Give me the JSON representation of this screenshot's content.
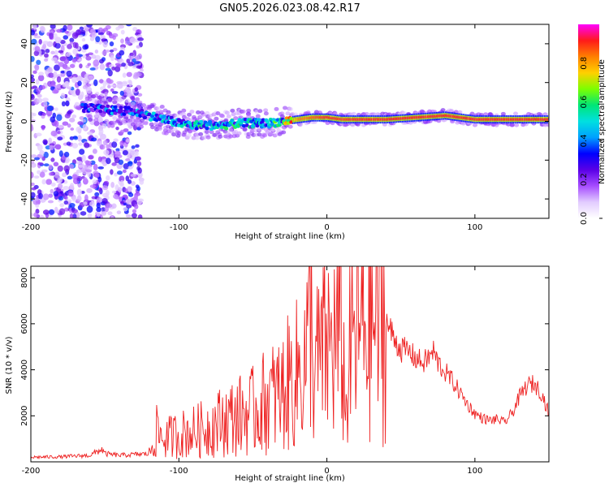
{
  "figure_title": "GN05.2026.023.08.42.R17",
  "colors": {
    "snr_line": "#ee2222",
    "colormap": [
      "#ffffff",
      "#e2ccff",
      "#a64dff",
      "#5a00e6",
      "#0000ff",
      "#00a0ff",
      "#00e0e0",
      "#00e676",
      "#7cff00",
      "#ffd000",
      "#ff8000",
      "#ff1a1a",
      "#ff00ff"
    ]
  },
  "chart_data": [
    {
      "type": "heatmap",
      "title": "GN05.2026.023.08.42.R17",
      "xlabel": "Height of straight line (km)",
      "ylabel": "Frequency (Hz)",
      "xlim": [
        -200,
        150
      ],
      "ylim": [
        -50,
        50
      ],
      "xticks": [
        -200,
        -100,
        0,
        100
      ],
      "xtick_labels": [
        "-200",
        "-100",
        "0",
        "100"
      ],
      "yticks": [
        -40,
        -20,
        0,
        20,
        40
      ],
      "ytick_labels": [
        "-40",
        "-20",
        "0",
        "20",
        "40"
      ],
      "colorbar": {
        "label": "Normalized spectral amplitude",
        "range": [
          0,
          1
        ],
        "ticks": [
          0.0,
          0.2,
          0.4,
          0.6,
          0.8
        ],
        "tick_labels": [
          "0.0",
          "0.2",
          "0.4",
          "0.6",
          "0.8"
        ]
      },
      "regions": [
        {
          "x_range": [
            -200,
            -125
          ],
          "description_level": "noise",
          "freq_range": [
            -50,
            50
          ],
          "amplitude": 0.1
        },
        {
          "x_range": [
            -165,
            -125
          ],
          "freq_center": 6,
          "amplitude": 0.3
        },
        {
          "x_range": [
            -125,
            -20
          ],
          "freq_center": 2,
          "amplitude": 0.35
        },
        {
          "x_range": [
            -20,
            150
          ],
          "freq_center": 2,
          "amplitude": 0.85
        }
      ],
      "ridge": {
        "x": [
          -165,
          -150,
          -130,
          -120,
          -110,
          -100,
          -90,
          -80,
          -70,
          -60,
          -50,
          -40,
          -30,
          -20,
          -10,
          0,
          10,
          20,
          40,
          60,
          80,
          100,
          120,
          150
        ],
        "freq": [
          7,
          6,
          5,
          3,
          1,
          -1,
          -2,
          -2,
          -2,
          -1,
          -1,
          -1,
          0,
          1,
          2,
          2,
          1,
          1,
          1,
          2,
          3,
          1,
          1,
          1
        ],
        "amplitude": [
          0.3,
          0.35,
          0.35,
          0.4,
          0.4,
          0.4,
          0.45,
          0.45,
          0.45,
          0.45,
          0.45,
          0.45,
          0.5,
          0.8,
          0.85,
          0.9,
          0.88,
          0.9,
          0.9,
          0.9,
          0.9,
          0.9,
          0.9,
          0.9
        ]
      }
    },
    {
      "type": "line",
      "xlabel": "Height of straight line (km)",
      "ylabel": "SNR (10 * v/v)",
      "xlim": [
        -200,
        150
      ],
      "ylim": [
        0,
        8500
      ],
      "xticks": [
        -200,
        -100,
        0,
        100
      ],
      "xtick_labels": [
        "-200",
        "-100",
        "0",
        "100"
      ],
      "yticks": [
        2000,
        4000,
        6000,
        8000
      ],
      "ytick_labels": [
        "2000",
        "4000",
        "6000",
        "8000"
      ],
      "series": [
        {
          "name": "SNR",
          "x": [
            -200,
            -180,
            -160,
            -152,
            -150,
            -140,
            -130,
            -120,
            -115,
            -110,
            -100,
            -90,
            -80,
            -70,
            -60,
            -50,
            -40,
            -30,
            -25,
            -20,
            -15,
            -12,
            -11,
            -10,
            -8,
            -5,
            0,
            5,
            10,
            13,
            15,
            20,
            25,
            30,
            35,
            40,
            45,
            50,
            55,
            60,
            65,
            70,
            72,
            75,
            80,
            85,
            90,
            95,
            100,
            105,
            110,
            115,
            120,
            125,
            130,
            135,
            140,
            145,
            150
          ],
          "y": [
            200,
            220,
            280,
            550,
            350,
            280,
            320,
            350,
            1300,
            1000,
            1200,
            1300,
            1500,
            1800,
            2000,
            2200,
            2700,
            3000,
            3500,
            3800,
            4400,
            5200,
            8600,
            4300,
            4000,
            4500,
            4900,
            5200,
            5500,
            2000,
            4500,
            5600,
            5900,
            6100,
            6150,
            6100,
            5400,
            4900,
            4800,
            4500,
            4300,
            4600,
            4800,
            4300,
            3900,
            3500,
            3000,
            2500,
            2100,
            1900,
            1800,
            1850,
            1700,
            2100,
            2800,
            3300,
            3400,
            3000,
            2100
          ]
        }
      ]
    }
  ]
}
